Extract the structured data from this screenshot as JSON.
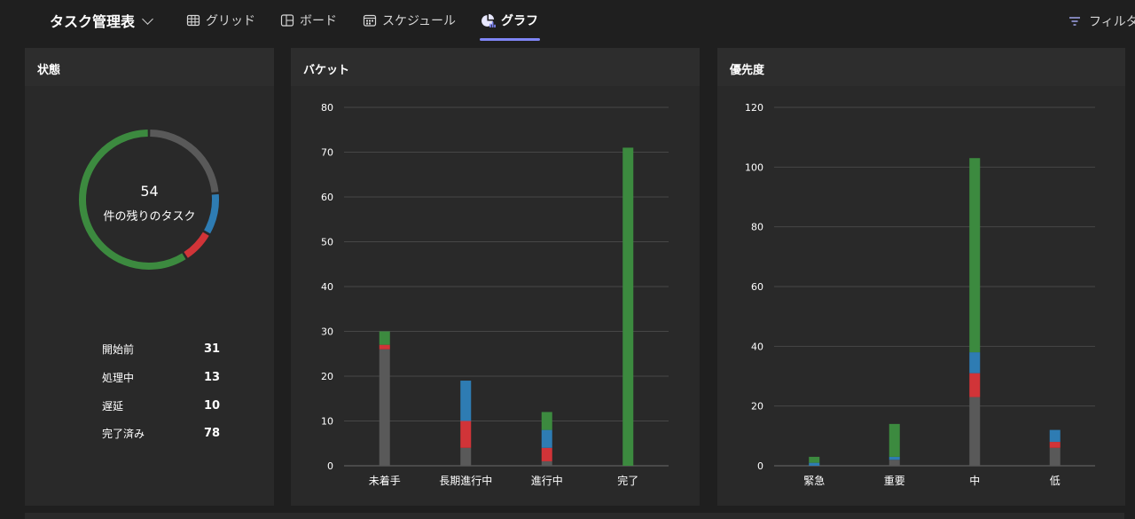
{
  "header": {
    "plan_title": "タスク管理表",
    "tabs": [
      {
        "label": "グリッド",
        "icon": "grid-icon"
      },
      {
        "label": "ボード",
        "icon": "board-icon"
      },
      {
        "label": "スケジュール",
        "icon": "calendar-icon"
      },
      {
        "label": "グラフ",
        "icon": "chart-icon",
        "active": true
      }
    ],
    "filter_label": "フィルタ"
  },
  "colors": {
    "not_started": "#595959",
    "in_progress": "#2e7cb3",
    "late": "#d13438",
    "completed": "#3c8a3f",
    "accent": "#7f85f5"
  },
  "status_card": {
    "title": "状態",
    "remaining_count": "54",
    "remaining_label": "件の残りのタスク",
    "legend": [
      {
        "label": "開始前",
        "value": "31"
      },
      {
        "label": "処理中",
        "value": "13"
      },
      {
        "label": "遅延",
        "value": "10"
      },
      {
        "label": "完了済み",
        "value": "78"
      }
    ]
  },
  "bucket_card": {
    "title": "バケット"
  },
  "priority_card": {
    "title": "優先度"
  },
  "chart_data": [
    {
      "type": "pie",
      "title": "状態",
      "categories": [
        "開始前",
        "処理中",
        "遅延",
        "完了済み"
      ],
      "values": [
        31,
        13,
        10,
        78
      ]
    },
    {
      "type": "bar",
      "stacked": true,
      "title": "バケット",
      "categories": [
        "未着手",
        "長期進行中",
        "進行中",
        "完了"
      ],
      "ylim": [
        0,
        80
      ],
      "yticks": [
        0,
        10,
        20,
        30,
        40,
        50,
        60,
        70,
        80
      ],
      "grid": true,
      "series": [
        {
          "key": "not_started",
          "values": [
            26,
            4,
            1,
            0
          ]
        },
        {
          "key": "late",
          "values": [
            1,
            6,
            3,
            0
          ]
        },
        {
          "key": "in_progress",
          "values": [
            0,
            9,
            4,
            0
          ]
        },
        {
          "key": "completed",
          "values": [
            3,
            0,
            4,
            71
          ]
        }
      ]
    },
    {
      "type": "bar",
      "stacked": true,
      "title": "優先度",
      "categories": [
        "緊急",
        "重要",
        "中",
        "低"
      ],
      "ylim": [
        0,
        120
      ],
      "yticks": [
        0,
        20,
        40,
        60,
        80,
        100,
        120
      ],
      "grid": true,
      "series": [
        {
          "key": "not_started",
          "values": [
            0,
            2,
            23,
            6
          ]
        },
        {
          "key": "late",
          "values": [
            0,
            0,
            8,
            2
          ]
        },
        {
          "key": "in_progress",
          "values": [
            1,
            1,
            7,
            4
          ]
        },
        {
          "key": "completed",
          "values": [
            2,
            11,
            65,
            0
          ]
        }
      ]
    }
  ]
}
